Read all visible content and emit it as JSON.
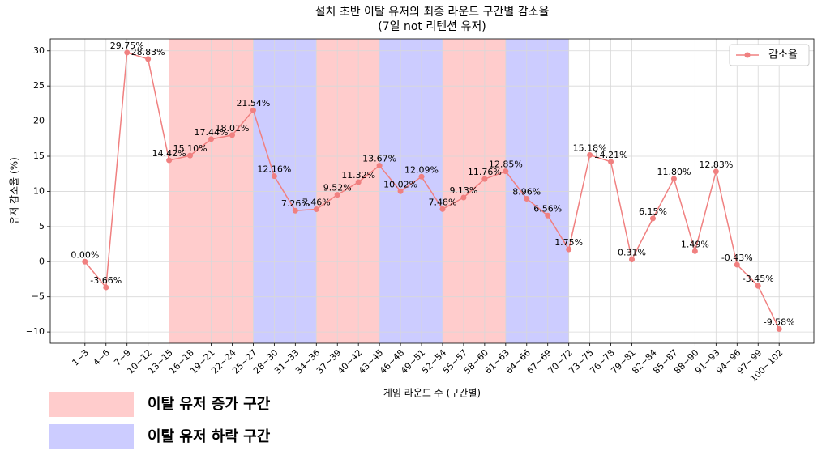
{
  "chart_data": {
    "type": "line",
    "title": "설치 초반 이탈 유저의 최종 라운드 구간별 감소율",
    "subtitle": "(7일 not 리텐션 유저)",
    "x_label": "게임 라운드 수 (구간별)",
    "y_label": "유저 감소율 (%)",
    "categories": [
      "1~3",
      "4~6",
      "7~9",
      "10~12",
      "13~15",
      "16~18",
      "19~21",
      "22~24",
      "25~27",
      "28~30",
      "31~33",
      "34~36",
      "37~39",
      "40~42",
      "43~45",
      "46~48",
      "49~51",
      "52~54",
      "55~57",
      "58~60",
      "61~63",
      "64~66",
      "67~69",
      "70~72",
      "73~75",
      "76~78",
      "79~81",
      "82~84",
      "85~87",
      "88~90",
      "91~93",
      "94~96",
      "97~99",
      "100~102"
    ],
    "series": [
      {
        "name": "감소율",
        "color": "#f08080",
        "values": [
          0.0,
          -3.66,
          29.75,
          28.83,
          14.42,
          15.1,
          17.44,
          18.01,
          21.54,
          12.16,
          7.26,
          7.46,
          9.52,
          11.32,
          13.67,
          10.02,
          12.09,
          7.48,
          9.13,
          11.76,
          12.85,
          8.96,
          6.56,
          1.75,
          15.18,
          14.21,
          0.31,
          6.15,
          11.8,
          1.49,
          12.83,
          -0.43,
          -3.45,
          -9.58
        ],
        "value_labels": [
          "0.00%",
          "-3.66%",
          "29.75%",
          "28.83%",
          "14.42%",
          "15.10%",
          "17.44%",
          "18.01%",
          "21.54%",
          "12.16%",
          "7.26%",
          "7.46%",
          "9.52%",
          "11.32%",
          "13.67%",
          "10.02%",
          "12.09%",
          "7.48%",
          "9.13%",
          "11.76%",
          "12.85%",
          "8.96%",
          "6.56%",
          "1.75%",
          "15.18%",
          "14.21%",
          "0.31%",
          "6.15%",
          "11.80%",
          "1.49%",
          "12.83%",
          "-0.43%",
          "-3.45%",
          "-9.58%"
        ]
      }
    ],
    "ylim": [
      -11.6,
      31.7
    ],
    "yticks": [
      {
        "value": -10,
        "label": "−10"
      },
      {
        "value": -5,
        "label": "−5"
      },
      0,
      5,
      10,
      15,
      20,
      25,
      30
    ],
    "grid": true,
    "legend": "upper right",
    "span_legend": [
      {
        "name": "이탈 유저 증가 구간",
        "color": "#ffcccc"
      },
      {
        "name": "이탈 유저 하락 구간",
        "color": "#ccccff"
      }
    ],
    "spans": [
      {
        "start": "13~15",
        "end": "25~27",
        "kind": 0
      },
      {
        "start": "25~27",
        "end": "34~36",
        "kind": 1
      },
      {
        "start": "34~36",
        "end": "43~45",
        "kind": 0
      },
      {
        "start": "43~45",
        "end": "52~54",
        "kind": 1
      },
      {
        "start": "52~54",
        "end": "61~63",
        "kind": 0
      },
      {
        "start": "61~63",
        "end": "70~72",
        "kind": 1
      }
    ]
  }
}
